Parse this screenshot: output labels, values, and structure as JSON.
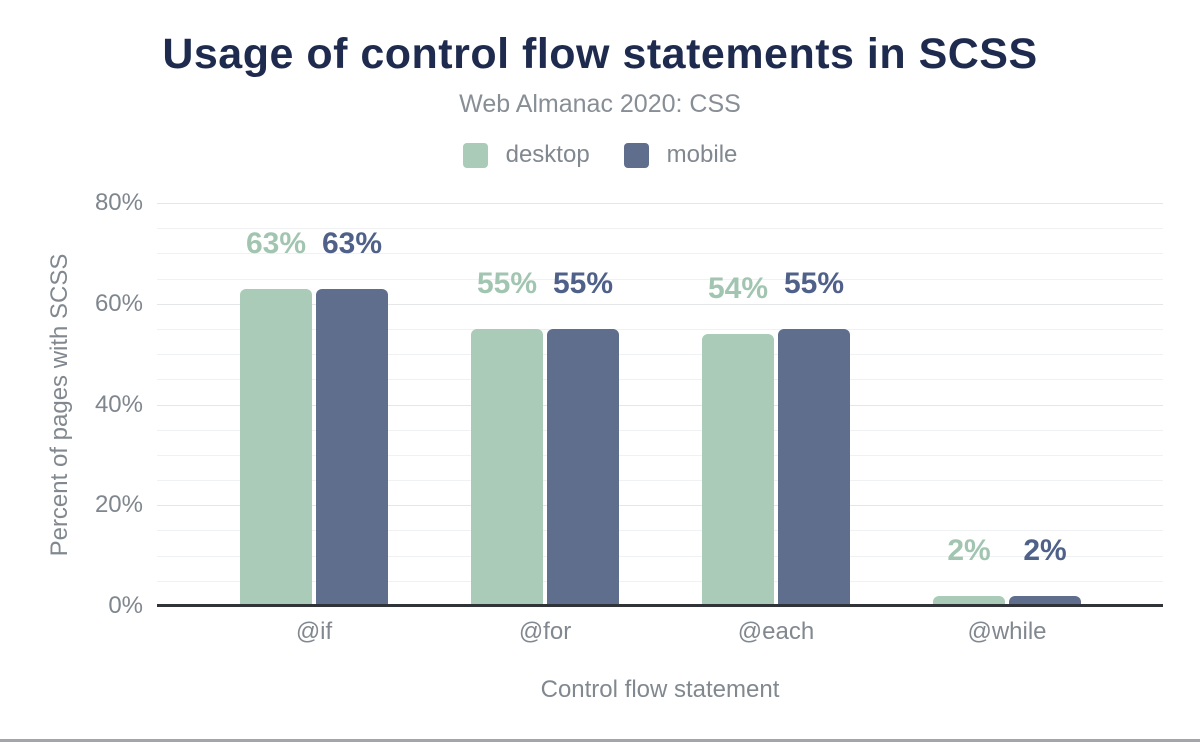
{
  "chart_data": {
    "type": "bar",
    "title": "Usage of control flow statements in SCSS",
    "subtitle": "Web Almanac 2020: CSS",
    "xlabel": "Control flow statement",
    "ylabel": "Percent of pages with SCSS",
    "categories": [
      "@if",
      "@for",
      "@each",
      "@while"
    ],
    "series": [
      {
        "name": "desktop",
        "color": "#a9cbb7",
        "label_color": "#a2c5b1",
        "values": [
          63,
          55,
          54,
          2
        ]
      },
      {
        "name": "mobile",
        "color": "#5f6e8c",
        "label_color": "#4f6189",
        "values": [
          63,
          55,
          55,
          2
        ]
      }
    ],
    "value_label_suffix": "%",
    "y_ticks": [
      {
        "pct": 0,
        "label": "0%"
      },
      {
        "pct": 20,
        "label": "20%"
      },
      {
        "pct": 40,
        "label": "40%"
      },
      {
        "pct": 60,
        "label": "60%"
      },
      {
        "pct": 80,
        "label": "80%"
      }
    ],
    "ylim": [
      0,
      80
    ],
    "grid_step_pct": 5,
    "grid_on": true,
    "legend_position": "top"
  },
  "colors": {
    "background": "#ffffff",
    "title_text": "#1e2b4e",
    "muted_text": "#81888f",
    "axis_line": "#303438",
    "grid_major": "#e4e6e8",
    "grid_minor": "#f0f1f3",
    "page_bottom_border": "#a2a6aa"
  }
}
